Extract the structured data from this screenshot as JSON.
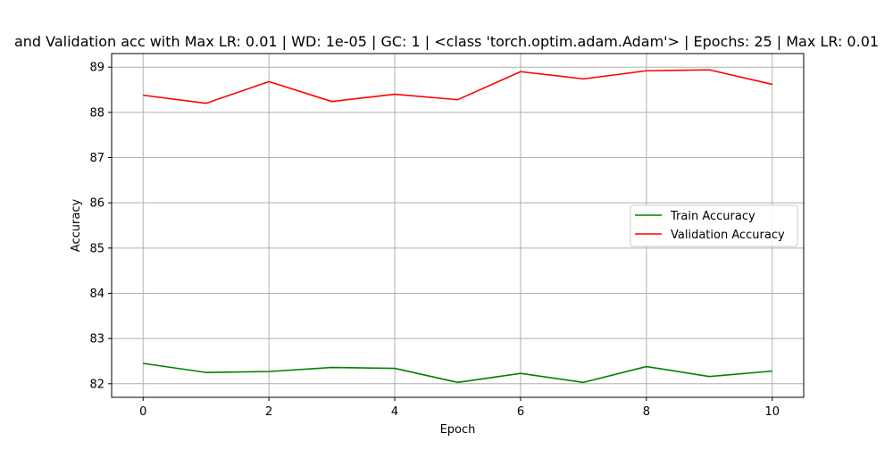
{
  "chart_data": {
    "type": "line",
    "title": "and Validation acc with Max LR: 0.01 | WD: 1e-05 | GC: 1 | <class 'torch.optim.adam.Adam'> | Epochs: 25 | Max LR: 0.01",
    "xlabel": "Epoch",
    "ylabel": "Accuracy",
    "xlim": [
      -0.5,
      10.5
    ],
    "ylim": [
      81.7,
      89.3
    ],
    "xticks": [
      0,
      2,
      4,
      6,
      8,
      10
    ],
    "yticks": [
      82,
      83,
      84,
      85,
      86,
      87,
      88,
      89
    ],
    "grid": true,
    "legend_position": "center-right",
    "x": [
      0,
      1,
      2,
      3,
      4,
      5,
      6,
      7,
      8,
      9,
      10
    ],
    "series": [
      {
        "name": "Train Accuracy",
        "color": "#008000",
        "values": [
          82.45,
          82.25,
          82.27,
          82.36,
          82.34,
          82.03,
          82.23,
          82.03,
          82.38,
          82.16,
          82.28
        ]
      },
      {
        "name": "Validation Accuracy",
        "color": "#ff0000",
        "values": [
          88.38,
          88.2,
          88.68,
          88.24,
          88.4,
          88.28,
          88.9,
          88.74,
          88.92,
          88.94,
          88.62
        ]
      }
    ]
  }
}
